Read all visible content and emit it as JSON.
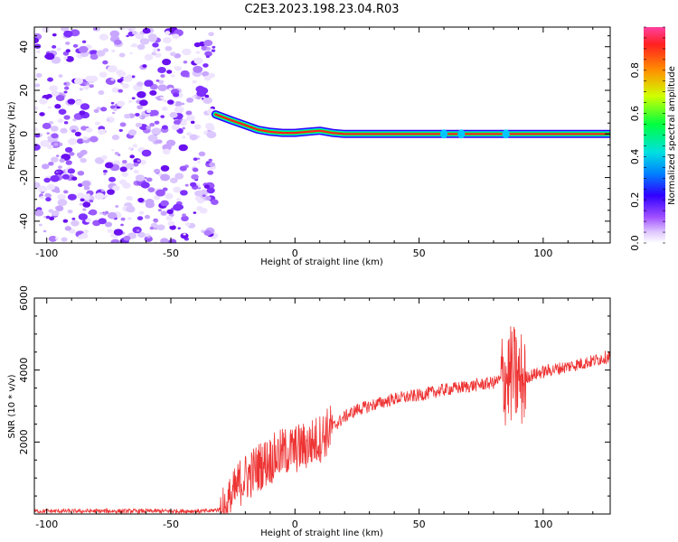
{
  "title": "C2E3.2023.198.23.04.R03",
  "chart_data": [
    {
      "type": "heatmap",
      "xlabel": "Height of straight line (km)",
      "ylabel": "Frequency (Hz)",
      "xlim": [
        -105,
        127
      ],
      "ylim": [
        -50,
        49
      ],
      "xticks": [
        -100,
        -50,
        0,
        50,
        100
      ],
      "yticks": [
        -40,
        -20,
        0,
        20,
        40
      ],
      "colorbar": {
        "label": "Normalized spectral amplitude",
        "range": [
          0,
          1
        ],
        "ticks": [
          0.0,
          0.2,
          0.4,
          0.6,
          0.8
        ]
      },
      "noise_region_x": [
        -105,
        -32
      ],
      "signal_track": {
        "x": [
          -32,
          -25,
          -20,
          -15,
          -10,
          -5,
          0,
          5,
          10,
          15,
          20,
          60,
          67,
          85,
          127
        ],
        "freq_hz": [
          9,
          6,
          4,
          2,
          1,
          0.5,
          0.5,
          1,
          1.5,
          0.5,
          0,
          0,
          0,
          0,
          0
        ]
      }
    },
    {
      "type": "line",
      "xlabel": "Height of straight line (km)",
      "ylabel": "SNR (10 * v/v)",
      "xlim": [
        -105,
        127
      ],
      "ylim": [
        0,
        6000
      ],
      "xticks": [
        -100,
        -50,
        0,
        50,
        100
      ],
      "yticks": [
        2000,
        4000,
        6000
      ],
      "color": "#ee3333",
      "series": [
        {
          "x": [
            -105,
            -90,
            -75,
            -60,
            -45,
            -35,
            -28,
            -25,
            -22,
            -18,
            -15,
            -10,
            -5,
            0,
            5,
            10,
            15,
            20,
            25,
            30,
            40,
            50,
            60,
            70,
            80,
            85,
            88,
            90,
            95,
            100,
            110,
            120,
            127
          ],
          "values": [
            80,
            80,
            80,
            80,
            80,
            80,
            150,
            500,
            900,
            1100,
            1300,
            1500,
            1700,
            1800,
            1900,
            2100,
            2400,
            2700,
            2900,
            3000,
            3200,
            3300,
            3450,
            3550,
            3650,
            3800,
            3900,
            3700,
            3850,
            3950,
            4100,
            4250,
            4400
          ]
        }
      ]
    }
  ]
}
